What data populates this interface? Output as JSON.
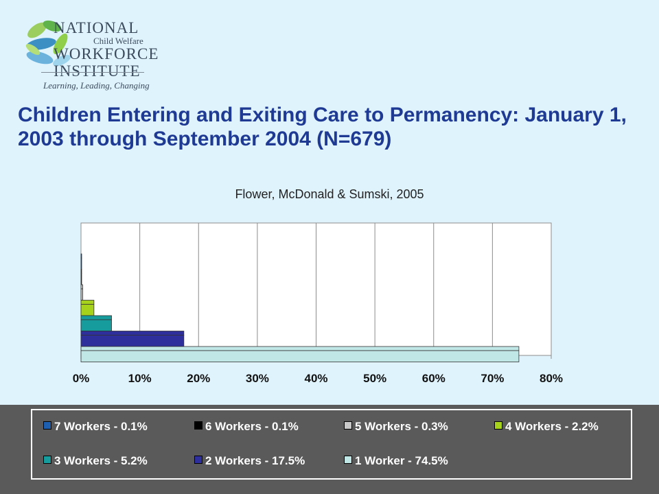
{
  "logo": {
    "line1": "NATIONAL",
    "line2": "Child Welfare",
    "line3": "WORKFORCE",
    "line4": "INSTITUTE",
    "tagline": "Learning, Leading, Changing"
  },
  "title": "Children Entering and Exiting Care to Permanency: January 1, 2003 through September 2004 (N=679)",
  "subtitle": "Flower, McDonald & Sumski, 2005",
  "chart_data": {
    "type": "bar",
    "orientation": "horizontal",
    "categories": [
      "7 Workers",
      "6 Workers",
      "5 Workers",
      "4 Workers",
      "3 Workers",
      "2 Workers",
      "1 Worker"
    ],
    "values": [
      0.1,
      0.1,
      0.3,
      2.2,
      5.2,
      17.5,
      74.5
    ],
    "colors": [
      "#1f5fb0",
      "#000000",
      "#c8c8c8",
      "#a7d21c",
      "#169c9c",
      "#2e2e9c",
      "#c0e6e6"
    ],
    "xlim": [
      0,
      80
    ],
    "x_ticks": [
      "0%",
      "10%",
      "20%",
      "30%",
      "40%",
      "50%",
      "60%",
      "70%",
      "80%"
    ],
    "grid": true,
    "legend": [
      "7 Workers - 0.1%",
      "6 Workers - 0.1%",
      "5 Workers - 0.3%",
      "4 Workers - 2.2%",
      "3 Workers - 5.2%",
      "2 Workers - 17.5%",
      "1 Worker - 74.5%"
    ],
    "legend_placement": "bottom"
  }
}
